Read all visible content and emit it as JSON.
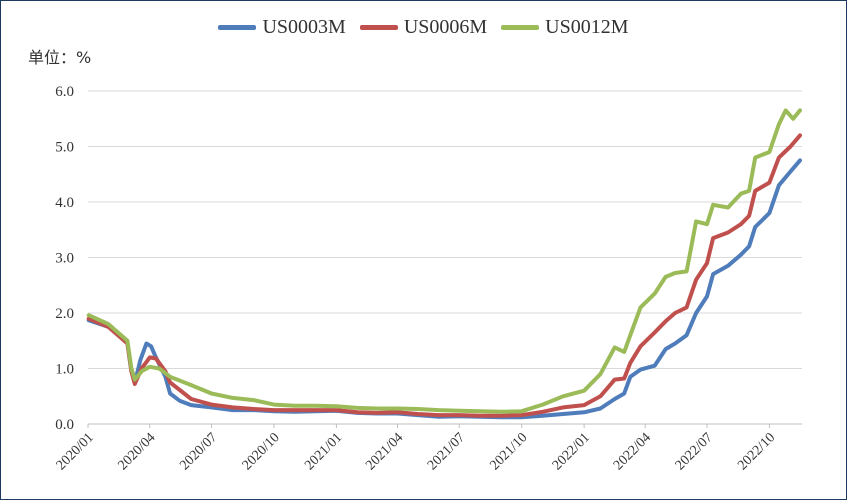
{
  "chart_data": {
    "type": "line",
    "unit_label": "单位：%",
    "x_labels": [
      "2020/01",
      "2020/04",
      "2020/07",
      "2020/10",
      "2021/01",
      "2021/04",
      "2021/07",
      "2021/10",
      "2022/01",
      "2022/04",
      "2022/07",
      "2022/10"
    ],
    "y_ticks": [
      "0.0",
      "1.0",
      "2.0",
      "3.0",
      "4.0",
      "5.0",
      "6.0"
    ],
    "ylim": [
      0,
      6
    ],
    "xlim": [
      "2020/01",
      "2022/11"
    ],
    "grid": "horizontal",
    "legend_position": "top",
    "series": [
      {
        "name": "US0003M",
        "color": "#4f7cba",
        "points": [
          [
            "2020/01/02",
            1.87
          ],
          [
            "2020/01/31",
            1.75
          ],
          [
            "2020/02/28",
            1.46
          ],
          [
            "2020/03/05",
            0.95
          ],
          [
            "2020/03/10",
            0.74
          ],
          [
            "2020/03/18",
            1.15
          ],
          [
            "2020/03/27",
            1.45
          ],
          [
            "2020/04/03",
            1.4
          ],
          [
            "2020/04/10",
            1.2
          ],
          [
            "2020/04/24",
            0.85
          ],
          [
            "2020/05/01",
            0.55
          ],
          [
            "2020/05/15",
            0.42
          ],
          [
            "2020/06/01",
            0.34
          ],
          [
            "2020/07/01",
            0.3
          ],
          [
            "2020/08/01",
            0.25
          ],
          [
            "2020/09/01",
            0.25
          ],
          [
            "2020/10/01",
            0.23
          ],
          [
            "2020/11/01",
            0.22
          ],
          [
            "2020/12/01",
            0.23
          ],
          [
            "2021/01/01",
            0.24
          ],
          [
            "2021/02/01",
            0.2
          ],
          [
            "2021/03/01",
            0.19
          ],
          [
            "2021/04/01",
            0.19
          ],
          [
            "2021/05/01",
            0.16
          ],
          [
            "2021/06/01",
            0.13
          ],
          [
            "2021/07/01",
            0.14
          ],
          [
            "2021/08/01",
            0.13
          ],
          [
            "2021/09/01",
            0.12
          ],
          [
            "2021/10/01",
            0.12
          ],
          [
            "2021/11/01",
            0.15
          ],
          [
            "2021/12/01",
            0.18
          ],
          [
            "2022/01/01",
            0.21
          ],
          [
            "2022/01/25",
            0.28
          ],
          [
            "2022/02/15",
            0.45
          ],
          [
            "2022/03/01",
            0.55
          ],
          [
            "2022/03/10",
            0.85
          ],
          [
            "2022/03/25",
            0.98
          ],
          [
            "2022/04/15",
            1.05
          ],
          [
            "2022/05/01",
            1.35
          ],
          [
            "2022/05/15",
            1.45
          ],
          [
            "2022/06/01",
            1.6
          ],
          [
            "2022/06/15",
            2.0
          ],
          [
            "2022/07/01",
            2.3
          ],
          [
            "2022/07/10",
            2.7
          ],
          [
            "2022/08/01",
            2.85
          ],
          [
            "2022/08/20",
            3.05
          ],
          [
            "2022/09/01",
            3.2
          ],
          [
            "2022/09/10",
            3.55
          ],
          [
            "2022/10/01",
            3.8
          ],
          [
            "2022/10/15",
            4.3
          ],
          [
            "2022/11/01",
            4.55
          ],
          [
            "2022/11/15",
            4.75
          ]
        ]
      },
      {
        "name": "US0006M",
        "color": "#c0504d",
        "points": [
          [
            "2020/01/02",
            1.9
          ],
          [
            "2020/01/31",
            1.75
          ],
          [
            "2020/02/28",
            1.45
          ],
          [
            "2020/03/05",
            0.95
          ],
          [
            "2020/03/10",
            0.72
          ],
          [
            "2020/03/20",
            1.0
          ],
          [
            "2020/04/01",
            1.2
          ],
          [
            "2020/04/10",
            1.18
          ],
          [
            "2020/04/24",
            0.95
          ],
          [
            "2020/05/01",
            0.75
          ],
          [
            "2020/06/01",
            0.45
          ],
          [
            "2020/07/01",
            0.35
          ],
          [
            "2020/08/01",
            0.3
          ],
          [
            "2020/09/01",
            0.27
          ],
          [
            "2020/10/01",
            0.25
          ],
          [
            "2020/11/01",
            0.25
          ],
          [
            "2020/12/01",
            0.25
          ],
          [
            "2021/01/01",
            0.25
          ],
          [
            "2021/02/01",
            0.21
          ],
          [
            "2021/03/01",
            0.2
          ],
          [
            "2021/04/01",
            0.21
          ],
          [
            "2021/05/01",
            0.18
          ],
          [
            "2021/06/01",
            0.16
          ],
          [
            "2021/07/01",
            0.16
          ],
          [
            "2021/08/01",
            0.15
          ],
          [
            "2021/09/01",
            0.15
          ],
          [
            "2021/10/01",
            0.16
          ],
          [
            "2021/11/01",
            0.22
          ],
          [
            "2021/12/01",
            0.3
          ],
          [
            "2022/01/01",
            0.34
          ],
          [
            "2022/01/25",
            0.5
          ],
          [
            "2022/02/15",
            0.8
          ],
          [
            "2022/03/01",
            0.82
          ],
          [
            "2022/03/10",
            1.1
          ],
          [
            "2022/03/25",
            1.4
          ],
          [
            "2022/04/15",
            1.65
          ],
          [
            "2022/05/01",
            1.85
          ],
          [
            "2022/05/15",
            2.0
          ],
          [
            "2022/06/01",
            2.1
          ],
          [
            "2022/06/15",
            2.6
          ],
          [
            "2022/07/01",
            2.9
          ],
          [
            "2022/07/10",
            3.35
          ],
          [
            "2022/08/01",
            3.45
          ],
          [
            "2022/08/20",
            3.6
          ],
          [
            "2022/09/01",
            3.75
          ],
          [
            "2022/09/10",
            4.2
          ],
          [
            "2022/10/01",
            4.35
          ],
          [
            "2022/10/15",
            4.8
          ],
          [
            "2022/11/01",
            5.0
          ],
          [
            "2022/11/15",
            5.2
          ]
        ]
      },
      {
        "name": "US0012M",
        "color": "#9bbb59",
        "points": [
          [
            "2020/01/02",
            1.96
          ],
          [
            "2020/01/31",
            1.8
          ],
          [
            "2020/02/28",
            1.5
          ],
          [
            "2020/03/05",
            1.0
          ],
          [
            "2020/03/10",
            0.8
          ],
          [
            "2020/03/20",
            0.95
          ],
          [
            "2020/04/01",
            1.03
          ],
          [
            "2020/04/15",
            1.0
          ],
          [
            "2020/05/01",
            0.85
          ],
          [
            "2020/06/01",
            0.7
          ],
          [
            "2020/07/01",
            0.55
          ],
          [
            "2020/08/01",
            0.47
          ],
          [
            "2020/09/01",
            0.43
          ],
          [
            "2020/10/01",
            0.35
          ],
          [
            "2020/11/01",
            0.33
          ],
          [
            "2020/12/01",
            0.33
          ],
          [
            "2021/01/01",
            0.32
          ],
          [
            "2021/02/01",
            0.29
          ],
          [
            "2021/03/01",
            0.28
          ],
          [
            "2021/04/01",
            0.28
          ],
          [
            "2021/05/01",
            0.27
          ],
          [
            "2021/06/01",
            0.25
          ],
          [
            "2021/07/01",
            0.24
          ],
          [
            "2021/08/01",
            0.23
          ],
          [
            "2021/09/01",
            0.22
          ],
          [
            "2021/10/01",
            0.23
          ],
          [
            "2021/11/01",
            0.35
          ],
          [
            "2021/12/01",
            0.5
          ],
          [
            "2022/01/01",
            0.6
          ],
          [
            "2022/01/25",
            0.9
          ],
          [
            "2022/02/15",
            1.38
          ],
          [
            "2022/03/01",
            1.3
          ],
          [
            "2022/03/10",
            1.6
          ],
          [
            "2022/03/25",
            2.1
          ],
          [
            "2022/04/15",
            2.35
          ],
          [
            "2022/05/01",
            2.65
          ],
          [
            "2022/05/15",
            2.72
          ],
          [
            "2022/06/01",
            2.75
          ],
          [
            "2022/06/15",
            3.65
          ],
          [
            "2022/07/01",
            3.6
          ],
          [
            "2022/07/10",
            3.95
          ],
          [
            "2022/08/01",
            3.9
          ],
          [
            "2022/08/20",
            4.15
          ],
          [
            "2022/09/01",
            4.2
          ],
          [
            "2022/09/10",
            4.8
          ],
          [
            "2022/10/01",
            4.9
          ],
          [
            "2022/10/15",
            5.4
          ],
          [
            "2022/10/25",
            5.65
          ],
          [
            "2022/11/05",
            5.5
          ],
          [
            "2022/11/15",
            5.65
          ]
        ]
      }
    ]
  }
}
